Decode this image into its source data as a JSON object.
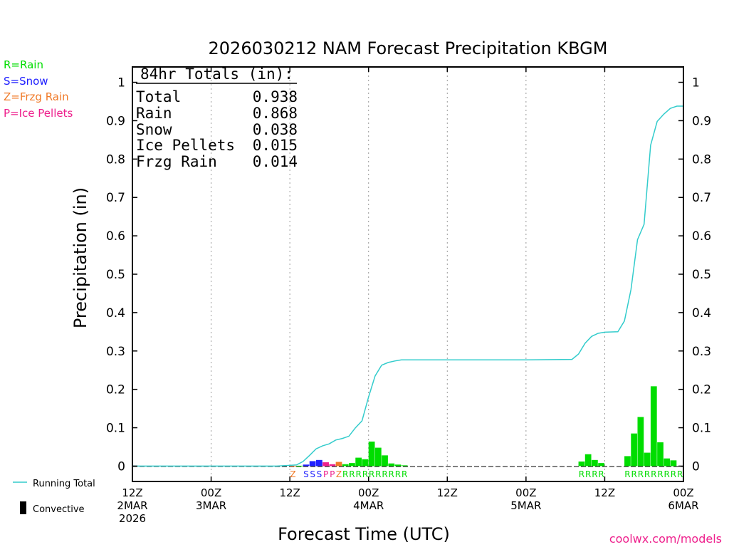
{
  "title": "2026030212 NAM Forecast Precipitation KBGM",
  "legend": {
    "types": [
      {
        "text": "R=Rain",
        "color": "#00dd00"
      },
      {
        "text": "S=Snow",
        "color": "#2020ff"
      },
      {
        "text": "Z=Frzg Rain",
        "color": "#f07a28"
      },
      {
        "text": "P=Ice Pellets",
        "color": "#ee1f8c"
      }
    ],
    "running_total": "Running Total",
    "convective": "Convective"
  },
  "totals": {
    "header": "84hr Totals (in):",
    "rows": [
      {
        "label": "Total",
        "value": "0.938"
      },
      {
        "label": "Rain",
        "value": "0.868"
      },
      {
        "label": "Snow",
        "value": "0.038"
      },
      {
        "label": "Ice Pellets",
        "value": "0.015"
      },
      {
        "label": "Frzg Rain",
        "value": "0.014"
      }
    ]
  },
  "watermark": "coolwx.com/models",
  "chart_data": {
    "type": "bar",
    "title": "2026030212 NAM Forecast Precipitation KBGM",
    "xlabel": "Forecast Time (UTC)",
    "ylabel": "Precipitation (in)",
    "xlim": [
      0,
      84
    ],
    "ylim": [
      -0.04,
      1.04
    ],
    "y_ticks": [
      0,
      0.1,
      0.2,
      0.3,
      0.4,
      0.5,
      0.6,
      0.7,
      0.8,
      0.9,
      1
    ],
    "y_tick_labels": [
      "0",
      "0.1",
      "0.2",
      "0.3",
      "0.4",
      "0.5",
      "0.6",
      "0.7",
      "0.8",
      "0.9",
      "1"
    ],
    "x_ticks": [
      {
        "hour": 0,
        "lines": [
          "12Z",
          "2MAR",
          "2026"
        ]
      },
      {
        "hour": 12,
        "lines": [
          "00Z",
          "3MAR"
        ]
      },
      {
        "hour": 24,
        "lines": [
          "12Z"
        ]
      },
      {
        "hour": 36,
        "lines": [
          "00Z",
          "4MAR"
        ]
      },
      {
        "hour": 48,
        "lines": [
          "12Z"
        ]
      },
      {
        "hour": 60,
        "lines": [
          "00Z",
          "5MAR"
        ]
      },
      {
        "hour": 72,
        "lines": [
          "12Z"
        ]
      },
      {
        "hour": 84,
        "lines": [
          "00Z",
          "6MAR"
        ]
      }
    ],
    "grid": "vertical dotted",
    "bars": [
      {
        "hour": 24,
        "value": 0.001,
        "type": "Z"
      },
      {
        "hour": 25,
        "value": 0.001,
        "type": "R"
      },
      {
        "hour": 26,
        "value": 0.004,
        "type": "S"
      },
      {
        "hour": 27,
        "value": 0.013,
        "type": "S"
      },
      {
        "hour": 28,
        "value": 0.016,
        "type": "S"
      },
      {
        "hour": 29,
        "value": 0.01,
        "type": "P"
      },
      {
        "hour": 30,
        "value": 0.005,
        "type": "P"
      },
      {
        "hour": 31,
        "value": 0.011,
        "type": "Z"
      },
      {
        "hour": 32,
        "value": 0.005,
        "type": "R"
      },
      {
        "hour": 33,
        "value": 0.008,
        "type": "R"
      },
      {
        "hour": 34,
        "value": 0.022,
        "type": "R"
      },
      {
        "hour": 35,
        "value": 0.018,
        "type": "R"
      },
      {
        "hour": 36,
        "value": 0.064,
        "type": "R"
      },
      {
        "hour": 37,
        "value": 0.048,
        "type": "R"
      },
      {
        "hour": 38,
        "value": 0.028,
        "type": "R"
      },
      {
        "hour": 39,
        "value": 0.007,
        "type": "R"
      },
      {
        "hour": 40,
        "value": 0.004,
        "type": "R"
      },
      {
        "hour": 41,
        "value": 0.002,
        "type": "R"
      },
      {
        "hour": 68,
        "value": 0.012,
        "type": "R"
      },
      {
        "hour": 69,
        "value": 0.031,
        "type": "R"
      },
      {
        "hour": 70,
        "value": 0.016,
        "type": "R"
      },
      {
        "hour": 71,
        "value": 0.008,
        "type": "R"
      },
      {
        "hour": 75,
        "value": 0.026,
        "type": "R"
      },
      {
        "hour": 76,
        "value": 0.085,
        "type": "R"
      },
      {
        "hour": 77,
        "value": 0.128,
        "type": "R"
      },
      {
        "hour": 78,
        "value": 0.035,
        "type": "R"
      },
      {
        "hour": 79,
        "value": 0.208,
        "type": "R"
      },
      {
        "hour": 80,
        "value": 0.062,
        "type": "R"
      },
      {
        "hour": 81,
        "value": 0.02,
        "type": "R"
      },
      {
        "hour": 82,
        "value": 0.015,
        "type": "R"
      }
    ],
    "type_labels": [
      {
        "hour": 24,
        "letter": "Z"
      },
      {
        "hour": 26,
        "letter": "S"
      },
      {
        "hour": 27,
        "letter": "S"
      },
      {
        "hour": 28,
        "letter": "S"
      },
      {
        "hour": 29,
        "letter": "P"
      },
      {
        "hour": 30,
        "letter": "P"
      },
      {
        "hour": 31,
        "letter": "Z"
      },
      {
        "hour": 32,
        "letter": "R"
      },
      {
        "hour": 33,
        "letter": "R"
      },
      {
        "hour": 34,
        "letter": "R"
      },
      {
        "hour": 35,
        "letter": "R"
      },
      {
        "hour": 36,
        "letter": "R"
      },
      {
        "hour": 37,
        "letter": "R"
      },
      {
        "hour": 38,
        "letter": "R"
      },
      {
        "hour": 39,
        "letter": "R"
      },
      {
        "hour": 40,
        "letter": "R"
      },
      {
        "hour": 41,
        "letter": "R"
      },
      {
        "hour": 68,
        "letter": "R"
      },
      {
        "hour": 69,
        "letter": "R"
      },
      {
        "hour": 70,
        "letter": "R"
      },
      {
        "hour": 71,
        "letter": "R"
      },
      {
        "hour": 75,
        "letter": "R"
      },
      {
        "hour": 76,
        "letter": "R"
      },
      {
        "hour": 77,
        "letter": "R"
      },
      {
        "hour": 78,
        "letter": "R"
      },
      {
        "hour": 79,
        "letter": "R"
      },
      {
        "hour": 80,
        "letter": "R"
      },
      {
        "hour": 81,
        "letter": "R"
      },
      {
        "hour": 82,
        "letter": "R"
      },
      {
        "hour": 83,
        "letter": "R"
      }
    ],
    "running_total": [
      [
        0,
        0
      ],
      [
        22,
        0
      ],
      [
        24,
        0.002
      ],
      [
        25,
        0.003
      ],
      [
        26,
        0.012
      ],
      [
        27,
        0.028
      ],
      [
        28,
        0.045
      ],
      [
        29,
        0.053
      ],
      [
        30,
        0.058
      ],
      [
        31,
        0.068
      ],
      [
        32,
        0.072
      ],
      [
        33,
        0.078
      ],
      [
        34,
        0.1
      ],
      [
        35,
        0.118
      ],
      [
        36,
        0.18
      ],
      [
        37,
        0.235
      ],
      [
        38,
        0.263
      ],
      [
        39,
        0.27
      ],
      [
        40,
        0.274
      ],
      [
        41,
        0.277
      ],
      [
        60,
        0.277
      ],
      [
        67,
        0.278
      ],
      [
        68,
        0.292
      ],
      [
        69,
        0.32
      ],
      [
        70,
        0.338
      ],
      [
        71,
        0.346
      ],
      [
        72,
        0.349
      ],
      [
        74,
        0.35
      ],
      [
        75,
        0.378
      ],
      [
        76,
        0.46
      ],
      [
        77,
        0.59
      ],
      [
        78,
        0.63
      ],
      [
        79,
        0.836
      ],
      [
        80,
        0.898
      ],
      [
        81,
        0.917
      ],
      [
        82,
        0.932
      ],
      [
        83,
        0.938
      ],
      [
        84,
        0.938
      ]
    ],
    "colors": {
      "R": "#00dd00",
      "S": "#2020ff",
      "Z": "#f07a28",
      "P": "#ee1f8c",
      "running_total": "#33cccc",
      "watermark": "#ee1f8c"
    }
  }
}
